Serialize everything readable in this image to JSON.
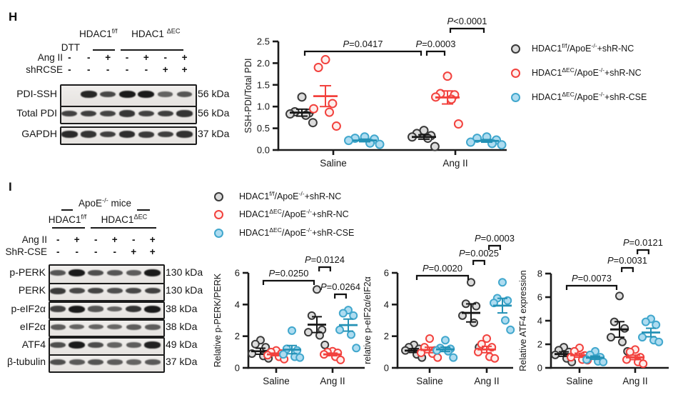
{
  "figure": {
    "background": "#ffffff"
  },
  "colors": {
    "black": {
      "stroke": "#3a3a3a",
      "fill": "#dcdcdc",
      "bar": "#161616"
    },
    "red": {
      "stroke": "#f2413d",
      "fill": "#fdeeec",
      "bar": "#f2413d"
    },
    "blue": {
      "stroke": "#41a7cd",
      "fill": "#aedcf0",
      "bar": "#2391b5"
    },
    "axis": "#1a1a1a"
  },
  "legend": {
    "items": [
      {
        "series": "black",
        "segments": [
          {
            "t": "HDAC1"
          },
          {
            "t": "f/f",
            "sup": true
          },
          {
            "t": "/ApoE"
          },
          {
            "t": "-/-",
            "sup": true
          },
          {
            "t": "+shR-NC"
          }
        ]
      },
      {
        "series": "red",
        "segments": [
          {
            "t": "HDAC1"
          },
          {
            "t": "ΔEC",
            "sup": true
          },
          {
            "t": "/ApoE"
          },
          {
            "t": "-/-",
            "sup": true
          },
          {
            "t": "+shR-NC"
          }
        ]
      },
      {
        "series": "blue",
        "segments": [
          {
            "t": "HDAC1"
          },
          {
            "t": "ΔEC",
            "sup": true
          },
          {
            "t": "/ApoE"
          },
          {
            "t": "-/-",
            "sup": true
          },
          {
            "t": "+shR-CSE"
          }
        ]
      }
    ]
  },
  "panelH": {
    "label": "H",
    "blot": {
      "group_headers": [
        {
          "segments": [
            {
              "t": "HDAC1"
            },
            {
              "t": "f/f",
              "sup": true
            }
          ]
        },
        {
          "segments": [
            {
              "t": "HDAC1 "
            },
            {
              "t": "ΔEC",
              "sup": true
            }
          ]
        }
      ],
      "dtt_label": "DTT",
      "condition_rows": [
        {
          "label": "Ang II",
          "symbols": [
            "-",
            "-",
            "+",
            "-",
            "+",
            "-",
            "+"
          ]
        },
        {
          "label": "shRCSE",
          "symbols": [
            "-",
            "-",
            "-",
            "-",
            "-",
            "+",
            "+"
          ]
        }
      ],
      "bands": [
        {
          "label": "PDI-SSH",
          "kda": "56 kDa",
          "intensities": [
            0,
            0.9,
            0.65,
            1,
            1,
            0.45,
            0.55
          ]
        },
        {
          "label": "Total PDI",
          "kda": "56 kDa",
          "intensities": [
            0.7,
            0.72,
            0.68,
            0.78,
            0.7,
            0.72,
            0.8
          ]
        },
        {
          "label": "GAPDH",
          "kda": "37 kDa",
          "intensities": [
            0.88,
            0.8,
            0.72,
            0.85,
            0.75,
            0.72,
            0.82
          ]
        }
      ]
    }
  },
  "panelI": {
    "label": "I",
    "blot": {
      "top_header": {
        "segments": [
          {
            "t": "ApoE"
          },
          {
            "t": "-/-",
            "sup": true
          },
          {
            "t": " mice"
          }
        ]
      },
      "group_headers": [
        {
          "segments": [
            {
              "t": "HDAC1"
            },
            {
              "t": "f/f",
              "sup": true
            }
          ]
        },
        {
          "segments": [
            {
              "t": "HDAC1"
            },
            {
              "t": "ΔEC",
              "sup": true
            }
          ]
        }
      ],
      "condition_rows": [
        {
          "label": "Ang II",
          "symbols": [
            "-",
            "+",
            "-",
            "+",
            "-",
            "+"
          ]
        },
        {
          "label": "ShR-CSE",
          "symbols": [
            "-",
            "-",
            "-",
            "-",
            "+",
            "+"
          ]
        }
      ],
      "bands": [
        {
          "label": "p-PERK",
          "kda": "130 kDa",
          "intensities": [
            0.55,
            1,
            0.6,
            0.55,
            0.5,
            1
          ]
        },
        {
          "label": "PERK",
          "kda": "130 kDa",
          "intensities": [
            0.75,
            0.65,
            0.68,
            0.6,
            0.65,
            0.7
          ]
        },
        {
          "label": "p-eIF2α",
          "kda": "38 kDa",
          "intensities": [
            0.7,
            1,
            0.55,
            0.45,
            0.8,
            1
          ]
        },
        {
          "label": "eIF2α",
          "kda": "38 kDa",
          "intensities": [
            0.5,
            0.45,
            0.45,
            0.42,
            0.5,
            0.5
          ]
        },
        {
          "label": "ATF4",
          "kda": "49 kDa",
          "intensities": [
            0.6,
            1,
            0.62,
            0.45,
            0.5,
            0.95
          ]
        },
        {
          "label": "β-tubulin",
          "kda": "37 kDa",
          "intensities": [
            0.6,
            0.52,
            0.56,
            0.5,
            0.45,
            0.52
          ]
        }
      ]
    }
  },
  "chart_data": [
    {
      "id": "chart-h",
      "type": "scatter",
      "ylabel": "SSH-PDI/Total PDI",
      "ylim": [
        0,
        2.5
      ],
      "yticks": [
        0,
        0.5,
        1,
        1.5,
        2,
        2.5
      ],
      "ytick_labels": [
        "0.0",
        "0.5",
        "1.0",
        "1.5",
        "2.0",
        "2.5"
      ],
      "categories": [
        "Saline",
        "Ang II"
      ],
      "series_order": [
        "black",
        "red",
        "blue"
      ],
      "groups": [
        {
          "category": "Saline",
          "points": {
            "black": [
              1.22,
              0.88,
              0.85,
              0.83,
              0.8,
              0.63
            ],
            "red": [
              2.08,
              1.9,
              1.07,
              0.95,
              0.87,
              0.55
            ],
            "blue": [
              0.3,
              0.27,
              0.25,
              0.22,
              0.16,
              0.13
            ]
          },
          "mean": {
            "black": 0.86,
            "red": 1.24,
            "blue": 0.22
          },
          "sem": {
            "black": 0.08,
            "red": 0.24,
            "blue": 0.03
          }
        },
        {
          "category": "Ang II",
          "points": {
            "black": [
              0.45,
              0.38,
              0.33,
              0.3,
              0.27,
              0.08
            ],
            "red": [
              1.7,
              1.3,
              1.27,
              1.22,
              1.17,
              0.6
            ],
            "blue": [
              0.3,
              0.27,
              0.23,
              0.18,
              0.15,
              0.12
            ]
          },
          "mean": {
            "black": 0.3,
            "red": 1.21,
            "blue": 0.21
          },
          "sem": {
            "black": 0.05,
            "red": 0.15,
            "blue": 0.03
          }
        }
      ],
      "annotations": [
        {
          "label": "P=0.0417",
          "from": [
            0,
            0
          ],
          "to": [
            1,
            0
          ],
          "level": 0
        },
        {
          "label": "P=0.0003",
          "from": [
            1,
            0
          ],
          "to": [
            1,
            1
          ],
          "level": 0
        },
        {
          "label": "P<0.0001",
          "from": [
            1,
            1
          ],
          "to": [
            1,
            2
          ],
          "level": 1
        }
      ]
    },
    {
      "id": "chart-i1",
      "type": "scatter",
      "ylabel": "Relative p-PERK/PERK",
      "ylim": [
        0,
        6
      ],
      "yticks": [
        0,
        2,
        4,
        6
      ],
      "ytick_labels": [
        "0",
        "2",
        "4",
        "6"
      ],
      "categories": [
        "Saline",
        "Ang II"
      ],
      "series_order": [
        "black",
        "red",
        "blue"
      ],
      "groups": [
        {
          "category": "Saline",
          "points": {
            "black": [
              1.75,
              1.5,
              1.3,
              0.9,
              0.75,
              0.6
            ],
            "red": [
              1.1,
              1.0,
              0.9,
              0.8,
              0.7,
              0.55
            ],
            "blue": [
              2.35,
              1.2,
              1.1,
              0.85,
              0.7,
              0.65
            ]
          },
          "mean": {
            "black": 1.05,
            "red": 0.85,
            "blue": 1.15
          },
          "sem": {
            "black": 0.19,
            "red": 0.08,
            "blue": 0.26
          }
        },
        {
          "category": "Ang II",
          "points": {
            "black": [
              4.95,
              3.3,
              2.4,
              2.25,
              2.05,
              1.45
            ],
            "red": [
              1.05,
              1.0,
              0.95,
              0.85,
              0.7,
              0.5
            ],
            "blue": [
              3.65,
              3.45,
              3.3,
              2.4,
              2.1,
              1.25
            ]
          },
          "mean": {
            "black": 2.73,
            "red": 0.85,
            "blue": 2.7
          },
          "sem": {
            "black": 0.5,
            "red": 0.08,
            "blue": 0.38
          }
        }
      ],
      "annotations": [
        {
          "label": "P=0.0250",
          "from": [
            0,
            0
          ],
          "to": [
            1,
            0
          ],
          "level": 1
        },
        {
          "label": "P=0.0124",
          "from": [
            1,
            0
          ],
          "to": [
            1,
            1
          ],
          "level": 2
        },
        {
          "label": "P=0.0264",
          "from": [
            1,
            1
          ],
          "to": [
            1,
            2
          ],
          "level": 0
        }
      ]
    },
    {
      "id": "chart-i2",
      "type": "scatter",
      "ylabel": "relative p-eIF2α/eIF2α",
      "ylim": [
        0,
        6
      ],
      "yticks": [
        0,
        2,
        4,
        6
      ],
      "ytick_labels": [
        "0",
        "2",
        "4",
        "6"
      ],
      "categories": [
        "Saline",
        "Ang II"
      ],
      "series_order": [
        "black",
        "red",
        "blue"
      ],
      "groups": [
        {
          "category": "Saline",
          "points": {
            "black": [
              1.45,
              1.3,
              1.2,
              1.1,
              0.85,
              0.65
            ],
            "red": [
              1.85,
              1.3,
              1.1,
              0.95,
              0.9,
              0.65
            ],
            "blue": [
              1.75,
              1.25,
              1.2,
              1.1,
              1.05,
              0.65
            ]
          },
          "mean": {
            "black": 1.09,
            "red": 1.13,
            "blue": 1.17
          },
          "sem": {
            "black": 0.12,
            "red": 0.17,
            "blue": 0.14
          }
        },
        {
          "category": "Ang II",
          "points": {
            "black": [
              5.4,
              4.05,
              3.9,
              3.3,
              2.85,
              1.3
            ],
            "red": [
              1.85,
              1.5,
              1.3,
              1.0,
              0.7,
              0.6
            ],
            "blue": [
              5.4,
              4.4,
              4.25,
              4.1,
              3.0,
              2.4
            ]
          },
          "mean": {
            "black": 3.47,
            "red": 1.16,
            "blue": 3.93
          },
          "sem": {
            "black": 0.57,
            "red": 0.2,
            "blue": 0.46
          }
        }
      ],
      "annotations": [
        {
          "label": "P=0.0020",
          "from": [
            0,
            0
          ],
          "to": [
            1,
            0
          ],
          "level": 0
        },
        {
          "label": "P=0.0025",
          "from": [
            1,
            0
          ],
          "to": [
            1,
            1
          ],
          "level": 1
        },
        {
          "label": "P=0.0003",
          "from": [
            1,
            1
          ],
          "to": [
            1,
            2
          ],
          "level": 2
        }
      ]
    },
    {
      "id": "chart-i3",
      "type": "scatter",
      "ylabel": "Relative ATF4 expression",
      "ylim": [
        0,
        8
      ],
      "yticks": [
        0,
        2,
        4,
        6,
        8
      ],
      "ytick_labels": [
        "0",
        "2",
        "4",
        "6",
        "8"
      ],
      "categories": [
        "Saline",
        "Ang II"
      ],
      "series_order": [
        "black",
        "red",
        "blue"
      ],
      "groups": [
        {
          "category": "Saline",
          "points": {
            "black": [
              1.75,
              1.5,
              1.35,
              1.1,
              0.8,
              0.5
            ],
            "red": [
              1.7,
              1.4,
              1.05,
              0.9,
              0.7,
              0.65
            ],
            "blue": [
              1.4,
              1.1,
              0.9,
              0.7,
              0.55,
              0.5
            ]
          },
          "mean": {
            "black": 1.17,
            "red": 1.07,
            "blue": 0.86
          },
          "sem": {
            "black": 0.19,
            "red": 0.17,
            "blue": 0.14
          }
        },
        {
          "category": "Ang II",
          "points": {
            "black": [
              6.1,
              3.9,
              3.35,
              2.6,
              2.2,
              1.4
            ],
            "red": [
              1.55,
              1.35,
              0.9,
              0.7,
              0.5,
              0.35
            ],
            "blue": [
              4.15,
              3.9,
              3.65,
              2.6,
              2.35,
              2.2
            ]
          },
          "mean": {
            "black": 3.26,
            "red": 0.89,
            "blue": 3.0
          },
          "sem": {
            "black": 0.66,
            "red": 0.19,
            "blue": 0.36
          }
        }
      ],
      "annotations": [
        {
          "label": "P=0.0073",
          "from": [
            0,
            0
          ],
          "to": [
            1,
            0
          ],
          "level": 0
        },
        {
          "label": "P=0.0031",
          "from": [
            1,
            0
          ],
          "to": [
            1,
            1
          ],
          "level": 1
        },
        {
          "label": "P=0.0121",
          "from": [
            1,
            1
          ],
          "to": [
            1,
            2
          ],
          "level": 2
        }
      ]
    }
  ]
}
